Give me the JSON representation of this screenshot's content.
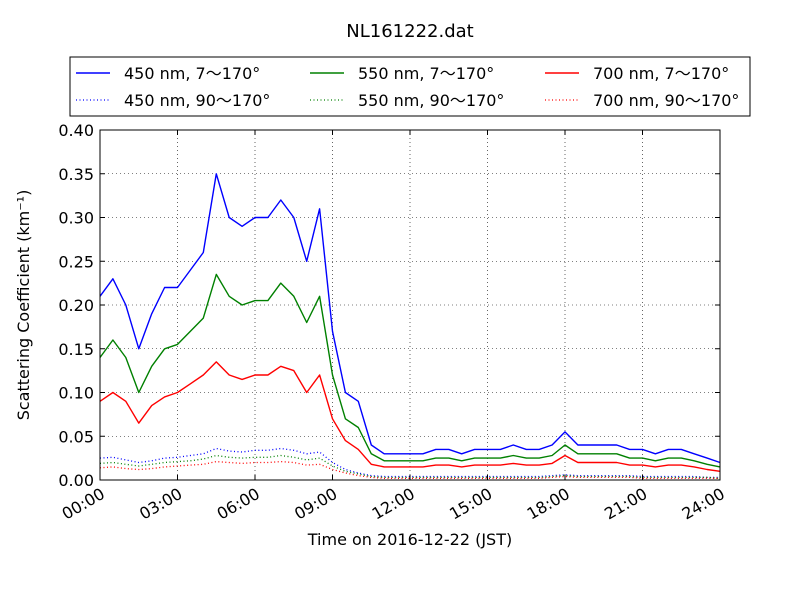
{
  "chart_data": {
    "type": "line",
    "title": "NL161222.dat",
    "xlabel": "Time on 2016-12-22 (JST)",
    "ylabel": "Scattering Coefficient (km⁻¹)",
    "xlim": [
      "00:00",
      "24:00"
    ],
    "ylim": [
      0.0,
      0.4
    ],
    "x_ticks": [
      "00:00",
      "03:00",
      "06:00",
      "09:00",
      "12:00",
      "15:00",
      "18:00",
      "21:00",
      "24:00"
    ],
    "y_ticks": [
      "0.00",
      "0.05",
      "0.10",
      "0.15",
      "0.20",
      "0.25",
      "0.30",
      "0.35",
      "0.40"
    ],
    "grid": true,
    "legend_position": "top, above plot",
    "x": [
      "00:00",
      "00:30",
      "01:00",
      "01:30",
      "02:00",
      "02:30",
      "03:00",
      "03:30",
      "04:00",
      "04:30",
      "05:00",
      "05:30",
      "06:00",
      "06:30",
      "07:00",
      "07:30",
      "08:00",
      "08:30",
      "09:00",
      "09:30",
      "10:00",
      "10:30",
      "11:00",
      "11:30",
      "12:00",
      "12:30",
      "13:00",
      "13:30",
      "14:00",
      "14:30",
      "15:00",
      "15:30",
      "16:00",
      "16:30",
      "17:00",
      "17:30",
      "18:00",
      "18:30",
      "19:00",
      "19:30",
      "20:00",
      "20:30",
      "21:00",
      "21:30",
      "22:00",
      "22:30",
      "23:00",
      "23:30",
      "24:00"
    ],
    "series": [
      {
        "name": "450 nm, 7～170°",
        "color": "#0000ff",
        "style": "solid",
        "values": [
          0.21,
          0.23,
          0.2,
          0.15,
          0.19,
          0.22,
          0.22,
          0.24,
          0.26,
          0.35,
          0.3,
          0.29,
          0.3,
          0.3,
          0.32,
          0.3,
          0.25,
          0.31,
          0.17,
          0.1,
          0.09,
          0.04,
          0.03,
          0.03,
          0.03,
          0.03,
          0.035,
          0.035,
          0.03,
          0.035,
          0.035,
          0.035,
          0.04,
          0.035,
          0.035,
          0.04,
          0.055,
          0.04,
          0.04,
          0.04,
          0.04,
          0.035,
          0.035,
          0.03,
          0.035,
          0.035,
          0.03,
          0.025,
          0.02
        ]
      },
      {
        "name": "450 nm, 90～170°",
        "color": "#0000ff",
        "style": "dotted",
        "values": [
          0.025,
          0.026,
          0.023,
          0.02,
          0.022,
          0.025,
          0.026,
          0.028,
          0.03,
          0.036,
          0.033,
          0.032,
          0.034,
          0.034,
          0.036,
          0.034,
          0.03,
          0.032,
          0.02,
          0.012,
          0.008,
          0.005,
          0.004,
          0.004,
          0.004,
          0.004,
          0.004,
          0.004,
          0.004,
          0.004,
          0.004,
          0.004,
          0.004,
          0.004,
          0.004,
          0.005,
          0.006,
          0.005,
          0.005,
          0.005,
          0.005,
          0.005,
          0.004,
          0.004,
          0.004,
          0.004,
          0.004,
          0.003,
          0.003
        ]
      },
      {
        "name": "550 nm, 7～170°",
        "color": "#008000",
        "style": "solid",
        "values": [
          0.14,
          0.16,
          0.14,
          0.1,
          0.13,
          0.15,
          0.155,
          0.17,
          0.185,
          0.235,
          0.21,
          0.2,
          0.205,
          0.205,
          0.225,
          0.21,
          0.18,
          0.21,
          0.12,
          0.07,
          0.06,
          0.03,
          0.022,
          0.022,
          0.022,
          0.022,
          0.025,
          0.025,
          0.022,
          0.025,
          0.025,
          0.025,
          0.028,
          0.025,
          0.025,
          0.028,
          0.04,
          0.03,
          0.03,
          0.03,
          0.03,
          0.025,
          0.025,
          0.022,
          0.025,
          0.025,
          0.022,
          0.018,
          0.015
        ]
      },
      {
        "name": "550 nm, 90～170°",
        "color": "#008000",
        "style": "dotted",
        "values": [
          0.019,
          0.02,
          0.018,
          0.016,
          0.018,
          0.02,
          0.021,
          0.022,
          0.024,
          0.028,
          0.026,
          0.025,
          0.026,
          0.026,
          0.028,
          0.026,
          0.023,
          0.025,
          0.016,
          0.01,
          0.007,
          0.004,
          0.003,
          0.003,
          0.003,
          0.003,
          0.003,
          0.003,
          0.003,
          0.003,
          0.003,
          0.003,
          0.003,
          0.003,
          0.003,
          0.004,
          0.005,
          0.004,
          0.004,
          0.004,
          0.004,
          0.004,
          0.003,
          0.003,
          0.003,
          0.003,
          0.003,
          0.003,
          0.002
        ]
      },
      {
        "name": "700 nm, 7～170°",
        "color": "#ff0000",
        "style": "solid",
        "values": [
          0.09,
          0.1,
          0.09,
          0.065,
          0.085,
          0.095,
          0.1,
          0.11,
          0.12,
          0.135,
          0.12,
          0.115,
          0.12,
          0.12,
          0.13,
          0.125,
          0.1,
          0.12,
          0.07,
          0.045,
          0.035,
          0.018,
          0.015,
          0.015,
          0.015,
          0.015,
          0.017,
          0.017,
          0.015,
          0.017,
          0.017,
          0.017,
          0.019,
          0.017,
          0.017,
          0.019,
          0.028,
          0.02,
          0.02,
          0.02,
          0.02,
          0.017,
          0.017,
          0.015,
          0.017,
          0.017,
          0.015,
          0.012,
          0.01
        ]
      },
      {
        "name": "700 nm, 90～170°",
        "color": "#ff0000",
        "style": "dotted",
        "values": [
          0.014,
          0.015,
          0.013,
          0.012,
          0.013,
          0.015,
          0.016,
          0.017,
          0.018,
          0.021,
          0.02,
          0.019,
          0.02,
          0.02,
          0.021,
          0.02,
          0.017,
          0.018,
          0.012,
          0.008,
          0.005,
          0.003,
          0.002,
          0.002,
          0.002,
          0.002,
          0.002,
          0.002,
          0.002,
          0.002,
          0.002,
          0.002,
          0.002,
          0.002,
          0.002,
          0.003,
          0.004,
          0.003,
          0.003,
          0.003,
          0.003,
          0.003,
          0.002,
          0.002,
          0.002,
          0.002,
          0.002,
          0.002,
          0.002
        ]
      }
    ]
  }
}
